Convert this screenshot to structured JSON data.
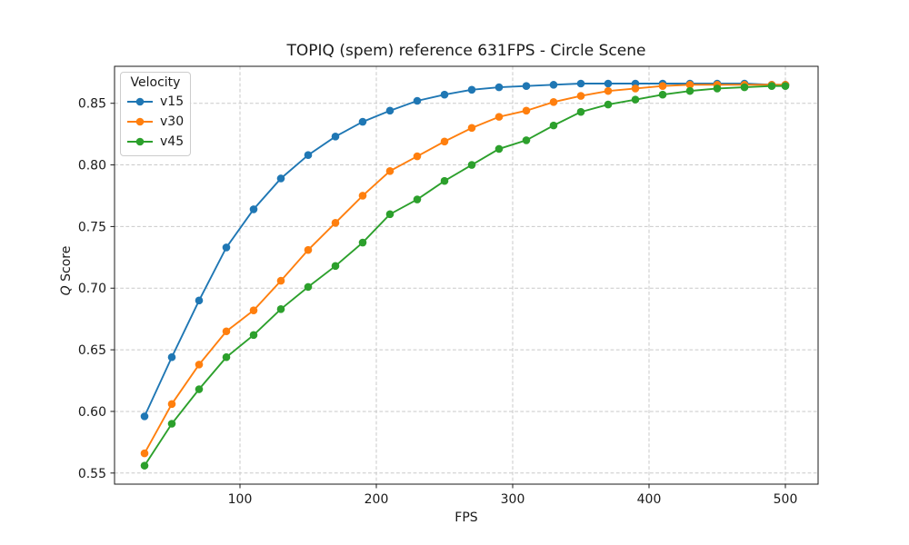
{
  "chart_data": {
    "type": "line",
    "title": "TOPIQ (spem) reference 631FPS - Circle Scene",
    "xlabel": "FPS",
    "ylabel": "Q Score",
    "ylabel_italic": "Q",
    "ylabel_rest": " Score",
    "legend": {
      "title": "Velocity",
      "position": "upper-left"
    },
    "grid": true,
    "marker": "circle",
    "xlim": [
      8,
      524
    ],
    "ylim": [
      0.541,
      0.88
    ],
    "x_ticks": [
      100,
      200,
      300,
      400,
      500
    ],
    "y_ticks": [
      0.55,
      0.6,
      0.65,
      0.7,
      0.75,
      0.8,
      0.85
    ],
    "x": [
      30,
      50,
      70,
      90,
      110,
      130,
      150,
      170,
      190,
      210,
      230,
      250,
      270,
      290,
      310,
      330,
      350,
      370,
      390,
      410,
      430,
      450,
      470,
      490,
      500
    ],
    "series": [
      {
        "name": "v15",
        "color": "#1f77b4",
        "values": [
          0.596,
          0.644,
          0.69,
          0.733,
          0.764,
          0.789,
          0.808,
          0.823,
          0.835,
          0.844,
          0.852,
          0.857,
          0.861,
          0.863,
          0.864,
          0.865,
          0.866,
          0.866,
          0.866,
          0.866,
          0.866,
          0.866,
          0.866,
          0.865,
          0.865
        ]
      },
      {
        "name": "v30",
        "color": "#ff7f0e",
        "values": [
          0.566,
          0.606,
          0.638,
          0.665,
          0.682,
          0.706,
          0.731,
          0.753,
          0.775,
          0.795,
          0.807,
          0.819,
          0.83,
          0.839,
          0.844,
          0.851,
          0.856,
          0.86,
          0.862,
          0.864,
          0.865,
          0.865,
          0.865,
          0.865,
          0.865
        ]
      },
      {
        "name": "v45",
        "color": "#2ca02c",
        "values": [
          0.556,
          0.59,
          0.618,
          0.644,
          0.662,
          0.683,
          0.701,
          0.718,
          0.737,
          0.76,
          0.772,
          0.787,
          0.8,
          0.813,
          0.82,
          0.832,
          0.843,
          0.849,
          0.853,
          0.857,
          0.86,
          0.862,
          0.863,
          0.864,
          0.864
        ]
      }
    ]
  }
}
